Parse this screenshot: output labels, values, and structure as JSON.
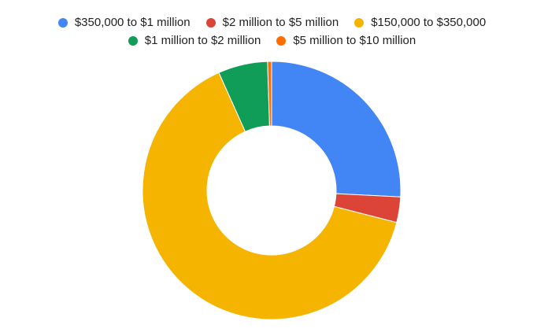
{
  "chart_data": {
    "type": "pie",
    "variant": "donut",
    "title": "",
    "categories": [
      "$350,000 to $1 million",
      "$2 million to $5 million",
      "$150,000 to $350,000",
      "$1 million to $2 million",
      "$5 million to $10 million"
    ],
    "values": [
      25.8,
      3.2,
      64.3,
      6.2,
      0.5
    ],
    "colors": [
      "#4285f4",
      "#db4437",
      "#f4b400",
      "#0f9d58",
      "#ff6d01"
    ],
    "legend_position": "top",
    "data_labels": false
  }
}
